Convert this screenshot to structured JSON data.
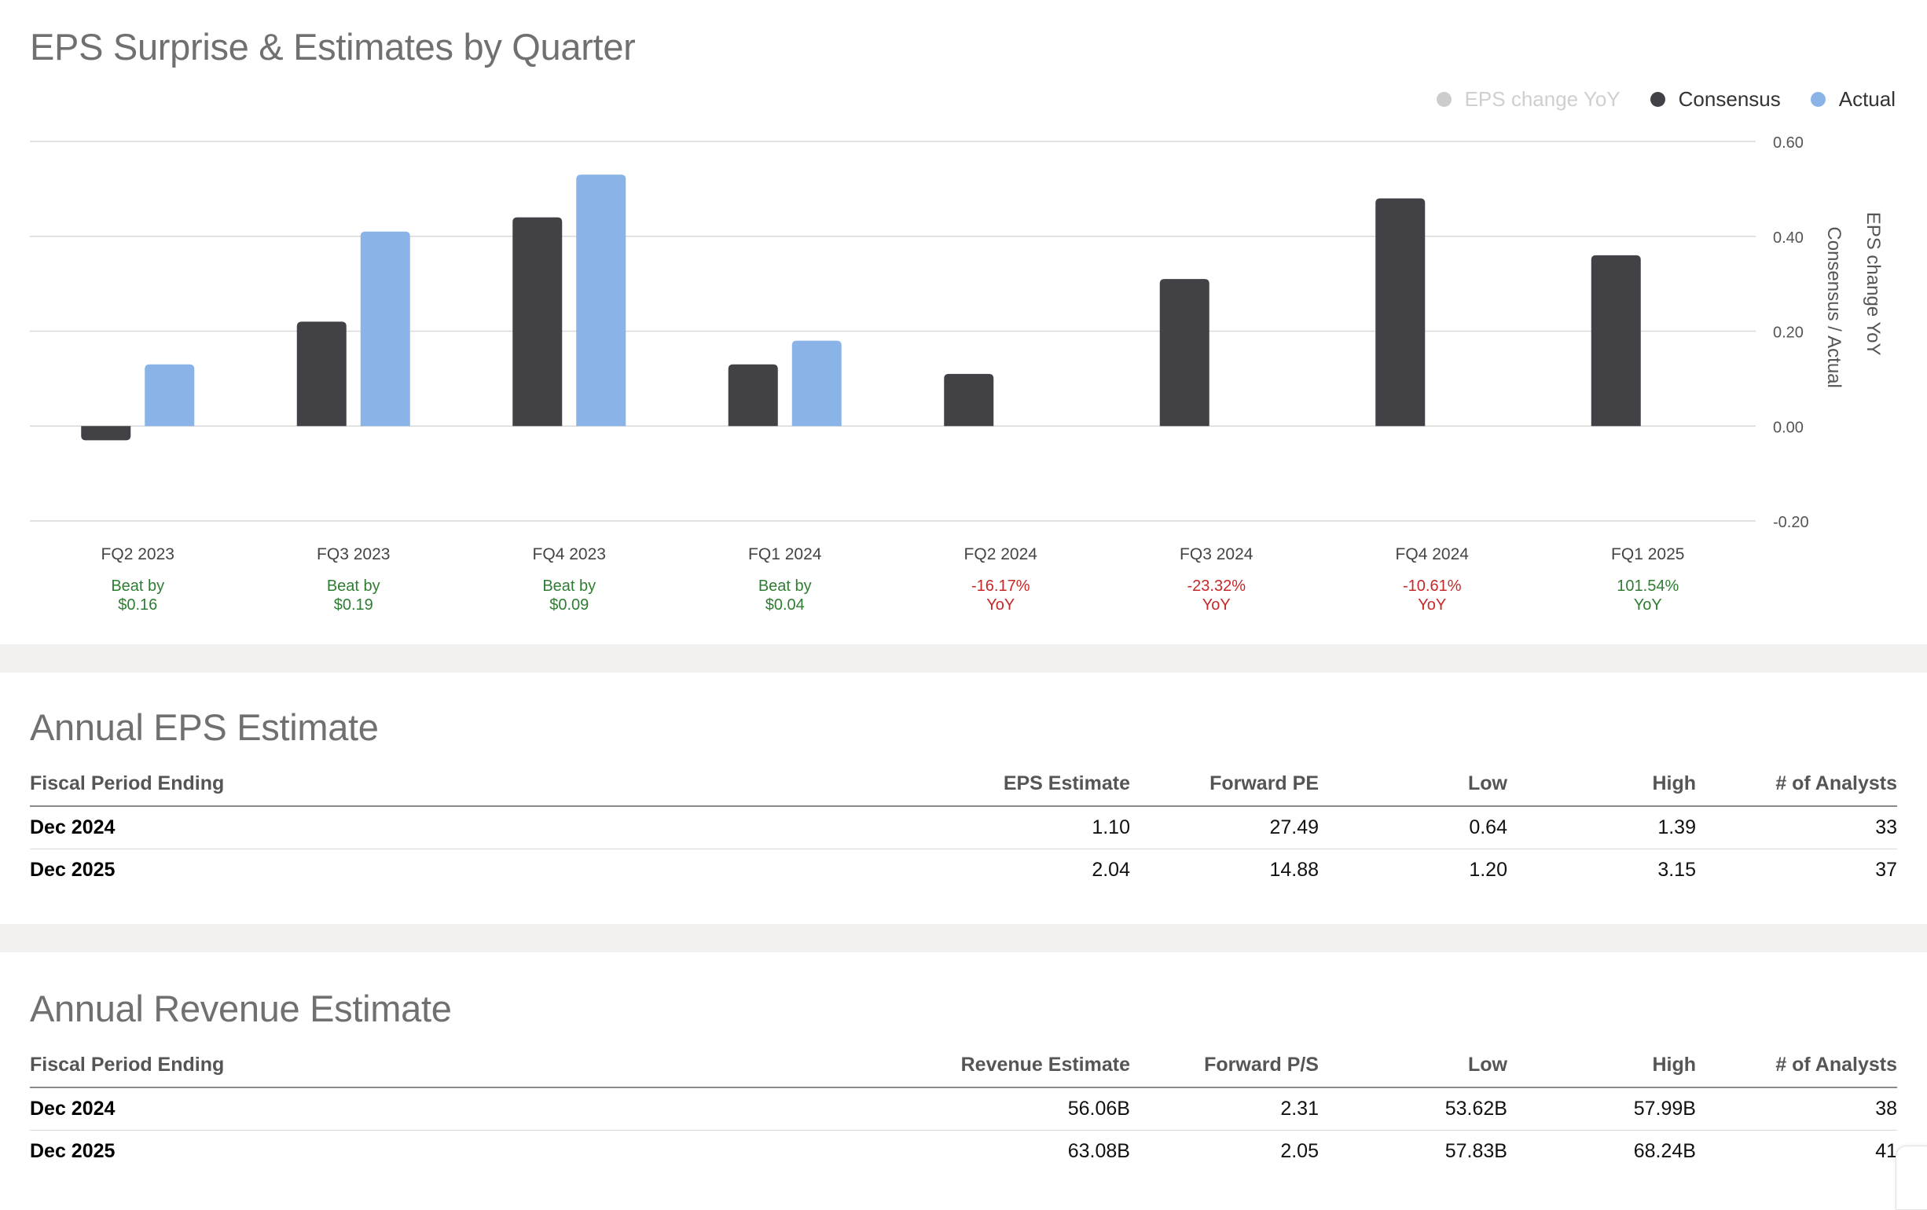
{
  "eps_chart": {
    "title": "EPS Surprise & Estimates by Quarter",
    "legend": [
      {
        "label": "EPS change YoY",
        "color": "#cccccc",
        "text_color": "#cfcfcf",
        "icon": "dot-icon"
      },
      {
        "label": "Consensus",
        "color": "#414146",
        "text_color": "#333333",
        "icon": "dot-icon"
      },
      {
        "label": "Actual",
        "color": "#8ab4e8",
        "text_color": "#333333",
        "icon": "dot-icon"
      }
    ],
    "right_axis_titles": [
      "EPS change YoY",
      "Consensus / Actual"
    ],
    "surprises": [
      {
        "line1": "Beat by",
        "line2": "$0.16",
        "status": "positive"
      },
      {
        "line1": "Beat by",
        "line2": "$0.19",
        "status": "positive"
      },
      {
        "line1": "Beat by",
        "line2": "$0.09",
        "status": "positive"
      },
      {
        "line1": "Beat by",
        "line2": "$0.04",
        "status": "positive"
      },
      {
        "line1": "-16.17%",
        "line2": "YoY",
        "status": "negative"
      },
      {
        "line1": "-23.32%",
        "line2": "YoY",
        "status": "negative"
      },
      {
        "line1": "-10.61%",
        "line2": "YoY",
        "status": "negative"
      },
      {
        "line1": "101.54%",
        "line2": "YoY",
        "status": "positive"
      }
    ],
    "colors": {
      "positive": "#2e7d32",
      "negative": "#c62828",
      "grid": "#d9d9d9",
      "tick": "#555555"
    }
  },
  "chart_data": {
    "type": "bar",
    "title": "EPS Surprise & Estimates by Quarter",
    "categories": [
      "FQ2 2023",
      "FQ3 2023",
      "FQ4 2023",
      "FQ1 2024",
      "FQ2 2024",
      "FQ3 2024",
      "FQ4 2024",
      "FQ1 2025"
    ],
    "series": [
      {
        "name": "Consensus",
        "color": "#414146",
        "values": [
          -0.03,
          0.22,
          0.44,
          0.13,
          0.11,
          0.31,
          0.48,
          0.36
        ]
      },
      {
        "name": "Actual",
        "color": "#8ab4e8",
        "values": [
          0.13,
          0.41,
          0.53,
          0.18,
          null,
          null,
          null,
          null
        ]
      }
    ],
    "ylabel": "Consensus / Actual",
    "y2label": "EPS change YoY",
    "ylim": [
      -0.2,
      0.6
    ],
    "yticks": [
      "0.60",
      "0.40",
      "0.20",
      "0.00",
      "-0.20"
    ],
    "ytick_values": [
      0.6,
      0.4,
      0.2,
      0.0,
      -0.2
    ],
    "grid": true,
    "legend_position": "top-right"
  },
  "annual_eps": {
    "title": "Annual EPS Estimate",
    "headers": [
      "Fiscal Period Ending",
      "EPS Estimate",
      "Forward PE",
      "Low",
      "High",
      "# of Analysts"
    ],
    "rows": [
      [
        "Dec 2024",
        "1.10",
        "27.49",
        "0.64",
        "1.39",
        "33"
      ],
      [
        "Dec 2025",
        "2.04",
        "14.88",
        "1.20",
        "3.15",
        "37"
      ]
    ]
  },
  "annual_revenue": {
    "title": "Annual Revenue Estimate",
    "headers": [
      "Fiscal Period Ending",
      "Revenue Estimate",
      "Forward P/S",
      "Low",
      "High",
      "# of Analysts"
    ],
    "rows": [
      [
        "Dec 2024",
        "56.06B",
        "2.31",
        "53.62B",
        "57.99B",
        "38"
      ],
      [
        "Dec 2025",
        "63.08B",
        "2.05",
        "57.83B",
        "68.24B",
        "41"
      ]
    ]
  }
}
